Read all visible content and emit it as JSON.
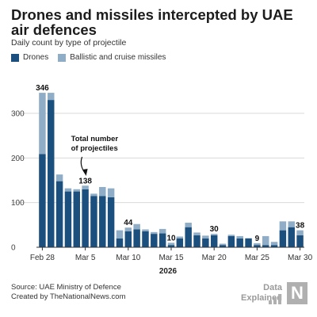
{
  "title": "Drones and missiles intercepted by UAE air defences",
  "subtitle": "Daily count by type of projectile",
  "colors": {
    "drones": "#1b4f7e",
    "missiles": "#8fadc6"
  },
  "source": "Source: UAE Ministry of Defence",
  "credit": "Created by TheNationalNews.com",
  "brand": {
    "line1": "Data",
    "line2": "Explained",
    "logo_letter": "N"
  },
  "chart_data": {
    "type": "bar",
    "stacked": true,
    "categories": [
      "Feb 28",
      "Mar 1",
      "Mar 2",
      "Mar 3",
      "Mar 4",
      "Mar 5",
      "Mar 6",
      "Mar 7",
      "Mar 8",
      "Mar 9",
      "Mar 10",
      "Mar 11",
      "Mar 12",
      "Mar 13",
      "Mar 14",
      "Mar 15",
      "Mar 16",
      "Mar 17",
      "Mar 18",
      "Mar 19",
      "Mar 20",
      "Mar 21",
      "Mar 22",
      "Mar 23",
      "Mar 24",
      "Mar 25",
      "Mar 26",
      "Mar 27",
      "Mar 28",
      "Mar 29",
      "Mar 30"
    ],
    "series": [
      {
        "name": "Drones",
        "values": [
          209,
          330,
          148,
          125,
          125,
          130,
          115,
          115,
          112,
          20,
          36,
          40,
          36,
          30,
          31,
          5,
          20,
          45,
          27,
          20,
          27,
          5,
          25,
          20,
          20,
          5,
          5,
          5,
          38,
          45,
          27
        ]
      },
      {
        "name": "Ballistic and cruise missiles",
        "values": [
          137,
          16,
          15,
          7,
          5,
          8,
          5,
          20,
          20,
          18,
          8,
          12,
          4,
          4,
          10,
          5,
          4,
          10,
          6,
          6,
          3,
          3,
          3,
          5,
          0,
          4,
          20,
          7,
          20,
          13,
          11
        ]
      }
    ],
    "data_labels": [
      {
        "category": "Feb 28",
        "text": "346"
      },
      {
        "category": "Mar 5",
        "text": "138"
      },
      {
        "category": "Mar 10",
        "text": "44"
      },
      {
        "category": "Mar 15",
        "text": "10"
      },
      {
        "category": "Mar 20",
        "text": "30"
      },
      {
        "category": "Mar 25",
        "text": "9"
      },
      {
        "category": "Mar 30",
        "text": "38"
      }
    ],
    "annotation": {
      "category": "Mar 5",
      "text": [
        "Total number",
        "of projectiles"
      ]
    },
    "x_ticks": [
      "Feb 28",
      "Mar 5",
      "Mar 10",
      "Mar 15",
      "Mar 20",
      "Mar 25",
      "Mar 30"
    ],
    "xlabel": "2026",
    "ylabel": "",
    "yticks": [
      0,
      100,
      200,
      300
    ],
    "ylim": [
      0,
      360
    ],
    "grid": true,
    "legend": "top-left"
  }
}
